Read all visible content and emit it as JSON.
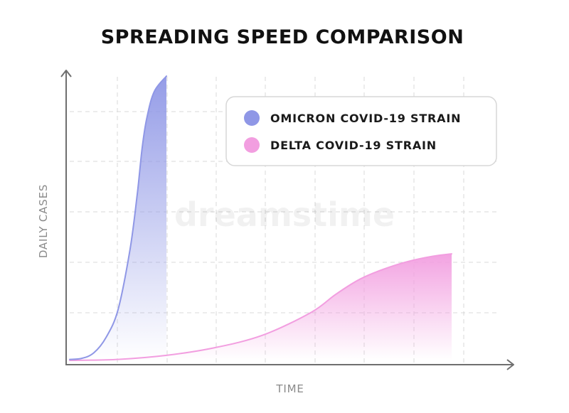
{
  "chart_data": {
    "type": "area",
    "title": "SPREADING SPEED COMPARISON",
    "xlabel": "TIME",
    "ylabel": "DAILY CASES",
    "xlim": [
      0,
      8.9
    ],
    "ylim": [
      0,
      5.7
    ],
    "grid": true,
    "legend_position": "top-right",
    "series": [
      {
        "name": "OMICRON COVID-19 STRAIN",
        "color": "#8f97e6",
        "x": [
          0,
          0.25,
          0.5,
          0.75,
          1.0,
          1.25,
          1.4,
          1.5,
          1.6,
          1.75,
          2.0
        ],
        "y": [
          0.02,
          0.04,
          0.15,
          0.45,
          1.0,
          2.2,
          3.3,
          4.2,
          4.8,
          5.3,
          5.6
        ]
      },
      {
        "name": "DELTA COVID-19 STRAIN",
        "color": "#f29ee0",
        "x": [
          0,
          1,
          2,
          3,
          4,
          5,
          5.5,
          6,
          6.5,
          7,
          7.5,
          7.9
        ],
        "y": [
          0,
          0.02,
          0.1,
          0.25,
          0.5,
          0.95,
          1.3,
          1.6,
          1.8,
          1.95,
          2.05,
          2.1
        ]
      }
    ]
  },
  "watermark": "dreamstime"
}
